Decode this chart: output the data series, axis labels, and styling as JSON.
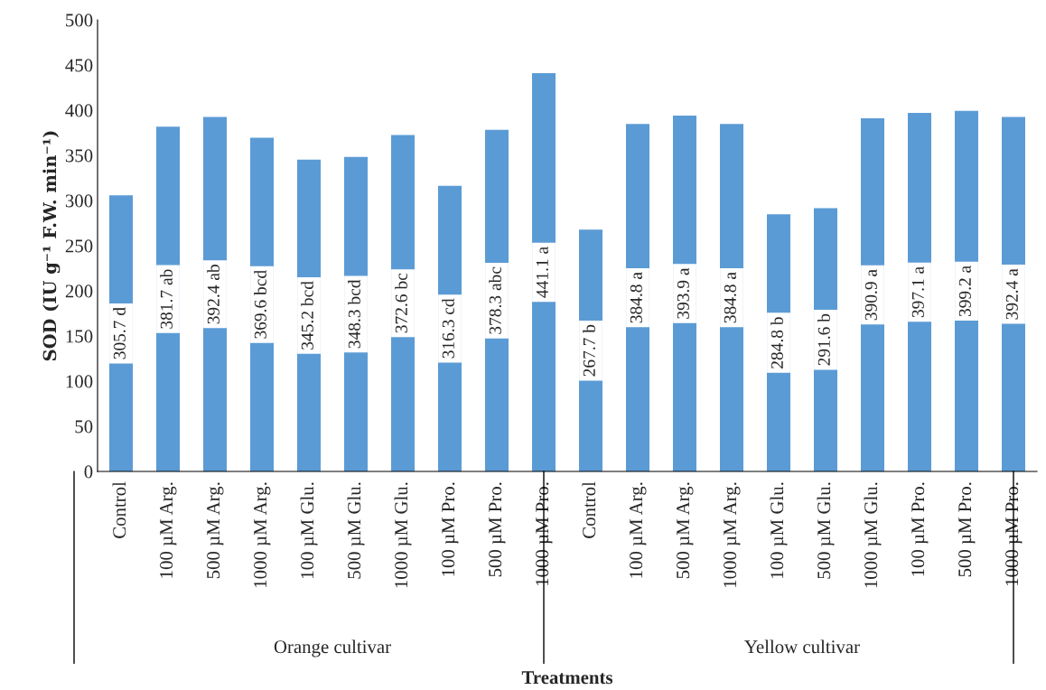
{
  "chart_data": {
    "type": "bar",
    "xlabel": "Treatments",
    "ylabel": "SOD (IU g⁻¹ F.W. min⁻¹)",
    "categories": [
      "Control",
      "100 µM Arg.",
      "500 µM Arg.",
      "1000 µM Arg.",
      "100 µM Glu.",
      "500 µM Glu.",
      "1000 µM Glu.",
      "100 µM Pro.",
      "500 µM Pro.",
      "1000 µM Pro.",
      "Control",
      "100 µM Arg.",
      "500 µM Arg.",
      "1000 µM Arg.",
      "100 µM Glu.",
      "500 µM Glu.",
      "1000 µM Glu.",
      "100 µM Pro.",
      "500 µM Pro.",
      "1000 µM Pro."
    ],
    "values": [
      305.7,
      381.7,
      392.4,
      369.6,
      345.2,
      348.3,
      372.6,
      316.3,
      378.3,
      441.1,
      267.7,
      384.8,
      393.9,
      384.8,
      284.8,
      291.6,
      390.9,
      397.1,
      399.2,
      392.4
    ],
    "value_labels": [
      "305.7 d",
      "381.7 ab",
      "392.4 ab",
      "369.6 bcd",
      "345.2 bcd",
      "348.3 bcd",
      "372.6 bc",
      "316.3 cd",
      "378.3 abc",
      "441.1 a",
      "267.7 b",
      "384.8 a",
      "393.9 a",
      "384.8 a",
      "284.8 b",
      "291.6 b",
      "390.9 a",
      "397.1 a",
      "399.2 a",
      "392.4 a"
    ],
    "color": "#5b9bd5",
    "annotations": [
      "Orange cultivar",
      "Yellow cultivar"
    ],
    "ylim": [
      0,
      500
    ],
    "yticks": [
      0,
      50,
      100,
      150,
      200,
      250,
      300,
      350,
      400,
      450,
      500
    ],
    "grid": false
  }
}
